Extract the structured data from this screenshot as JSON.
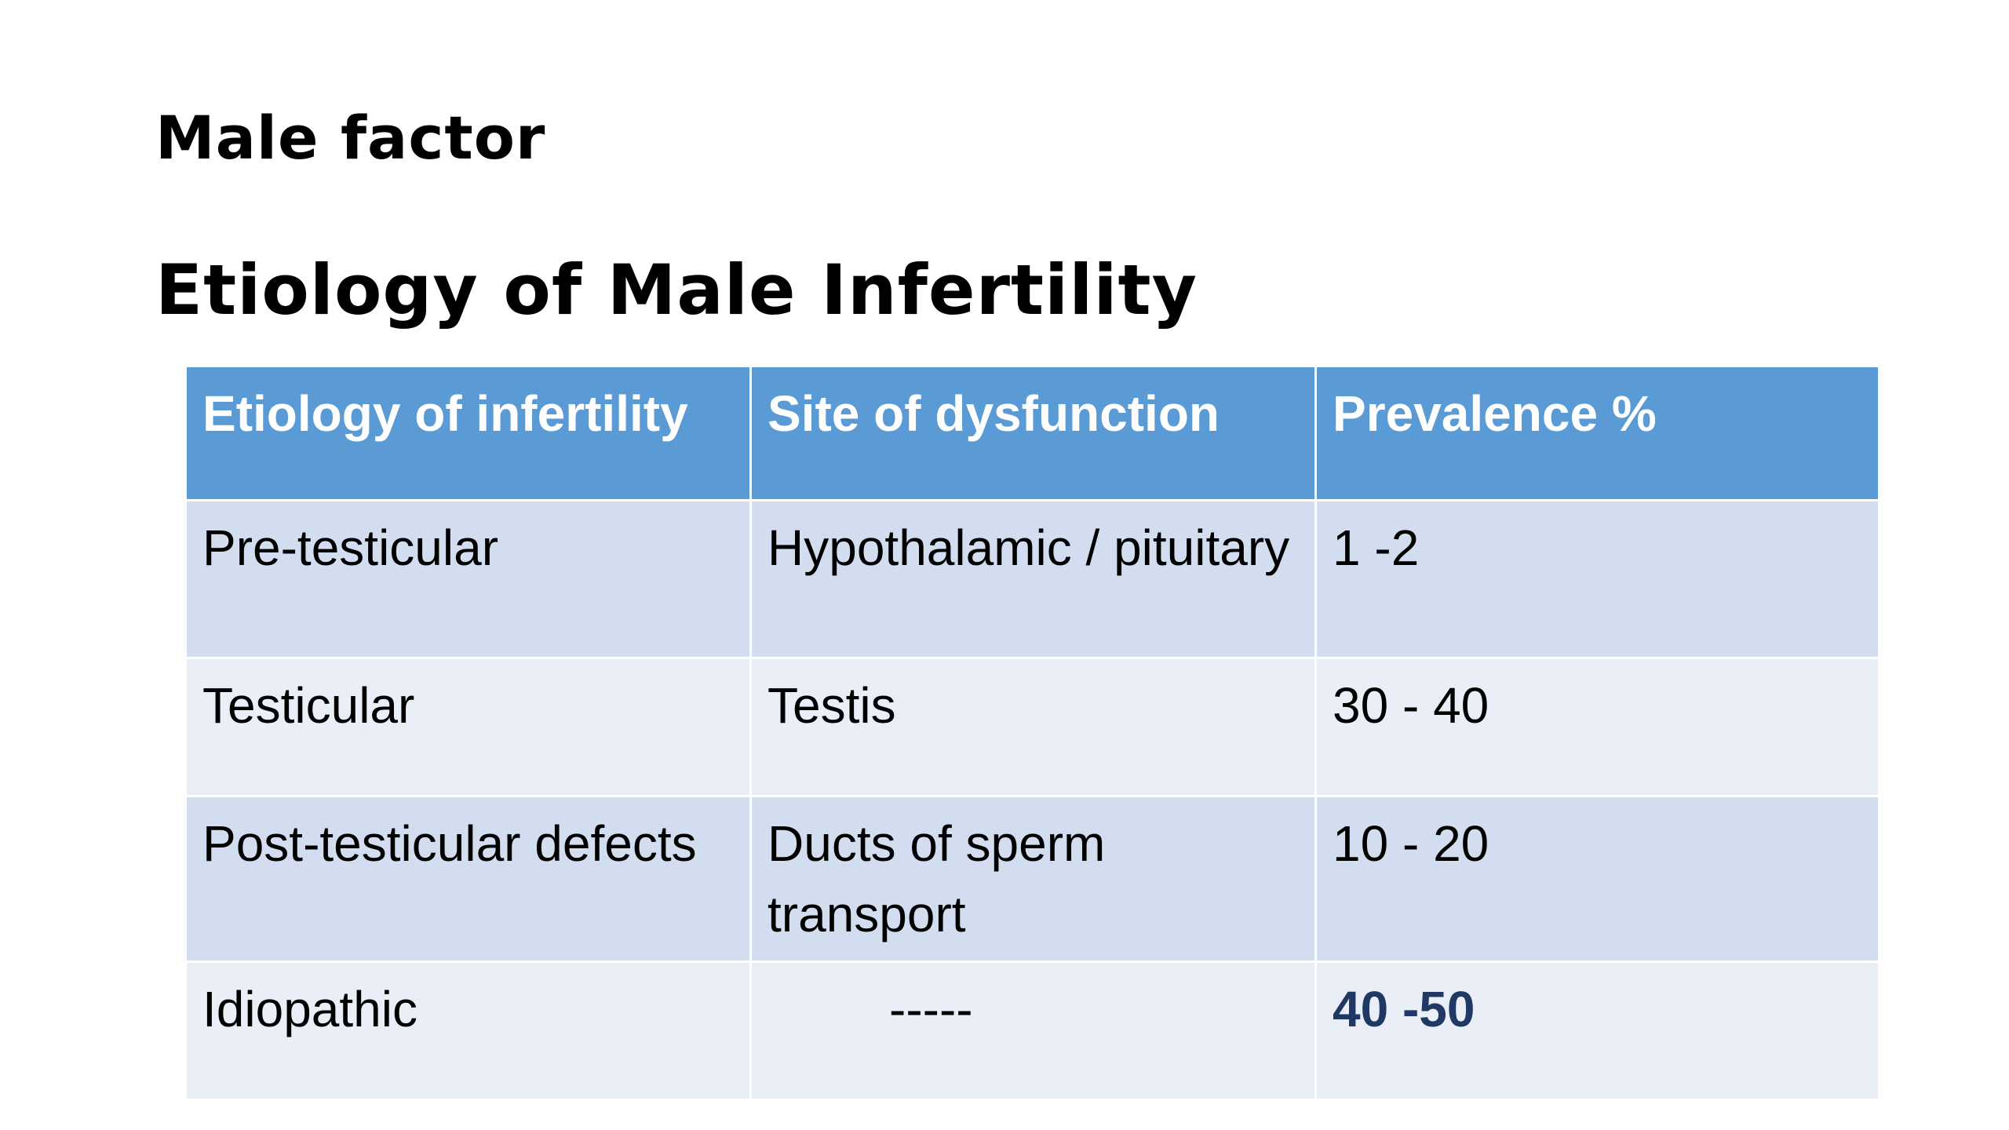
{
  "slide": {
    "heading_1": "Male factor",
    "heading_2": "Etiology of Male Infertility"
  },
  "table": {
    "headers": [
      "Etiology of infertility",
      "Site of dysfunction",
      "Prevalence %"
    ],
    "rows": [
      [
        "Pre-testicular",
        "Hypothalamic / pituitary",
        "1 -2"
      ],
      [
        "Testicular",
        "Testis",
        "30 - 40"
      ],
      [
        "Post-testicular defects",
        "Ducts of  sperm transport",
        "10 - 20"
      ],
      [
        "Idiopathic",
        "-----",
        "40 -50"
      ]
    ]
  },
  "colors": {
    "header_bg": "#5b9bd5",
    "row_odd_bg": "#d2deef",
    "row_even_bg": "#eaeff7",
    "highlight_text": "#1f3864"
  }
}
